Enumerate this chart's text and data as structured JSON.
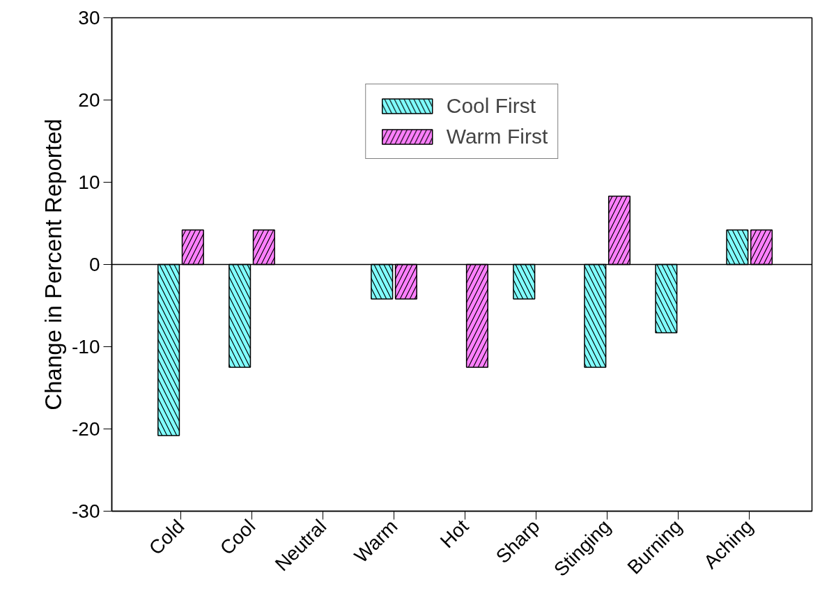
{
  "chart_data": {
    "type": "bar",
    "ylabel": "Change in Percent Reported",
    "categories": [
      "Cold",
      "Cool",
      "Neutral",
      "Warm",
      "Hot",
      "Sharp",
      "Stinging",
      "Burning",
      "Aching"
    ],
    "series": [
      {
        "name": "Cool First",
        "color": "#80ffff",
        "values": [
          -20.8,
          -12.5,
          null,
          -4.2,
          null,
          -4.2,
          -12.5,
          -8.3,
          4.2
        ]
      },
      {
        "name": "Warm First",
        "color": "#ff80ff",
        "values": [
          4.2,
          4.2,
          null,
          -4.2,
          -12.5,
          null,
          8.3,
          null,
          4.2
        ]
      }
    ],
    "ylim": [
      -30,
      30
    ],
    "yticks": [
      -30,
      -20,
      -10,
      0,
      10,
      20,
      30
    ],
    "ref_lines": [
      {
        "axis": "y",
        "value": 0
      }
    ],
    "legend": "top",
    "grid": false
  }
}
